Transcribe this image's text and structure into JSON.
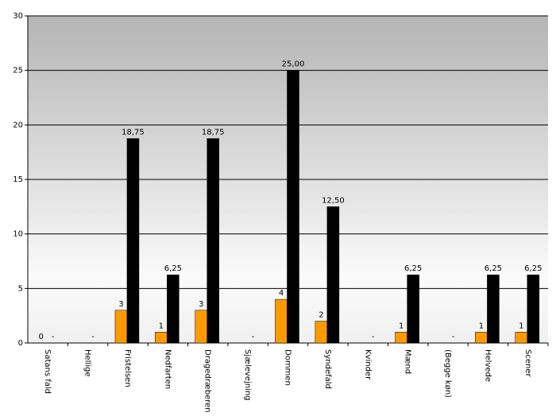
{
  "chart_data": {
    "type": "bar",
    "categories": [
      "Satans fald",
      "Hellige",
      "Fristelsen",
      "Nedfarten",
      "Dragedræberen",
      "Sjælevejning",
      "Dommen",
      "Syndefald",
      "Kvinder",
      "Mænd",
      "(Begge køn)",
      "Helvede",
      "Scener"
    ],
    "series": [
      {
        "color": "#ff9900",
        "values": [
          0,
          null,
          3,
          1,
          3,
          null,
          4,
          2,
          null,
          1,
          null,
          1,
          1
        ]
      },
      {
        "color": "#000000",
        "values": [
          0,
          0,
          18.75,
          6.25,
          18.75,
          0,
          25,
          12.5,
          0,
          6.25,
          0,
          6.25,
          6.25
        ],
        "value_labels": [
          "-",
          "-",
          "18,75",
          "6,25",
          "18,75",
          "-",
          "25,00",
          "12,50",
          "-",
          "6,25",
          "-",
          "6,25",
          "6,25"
        ]
      }
    ],
    "ylim": [
      0,
      30
    ],
    "yticks": [
      0,
      5,
      10,
      15,
      20,
      25,
      30
    ],
    "grid": true
  }
}
